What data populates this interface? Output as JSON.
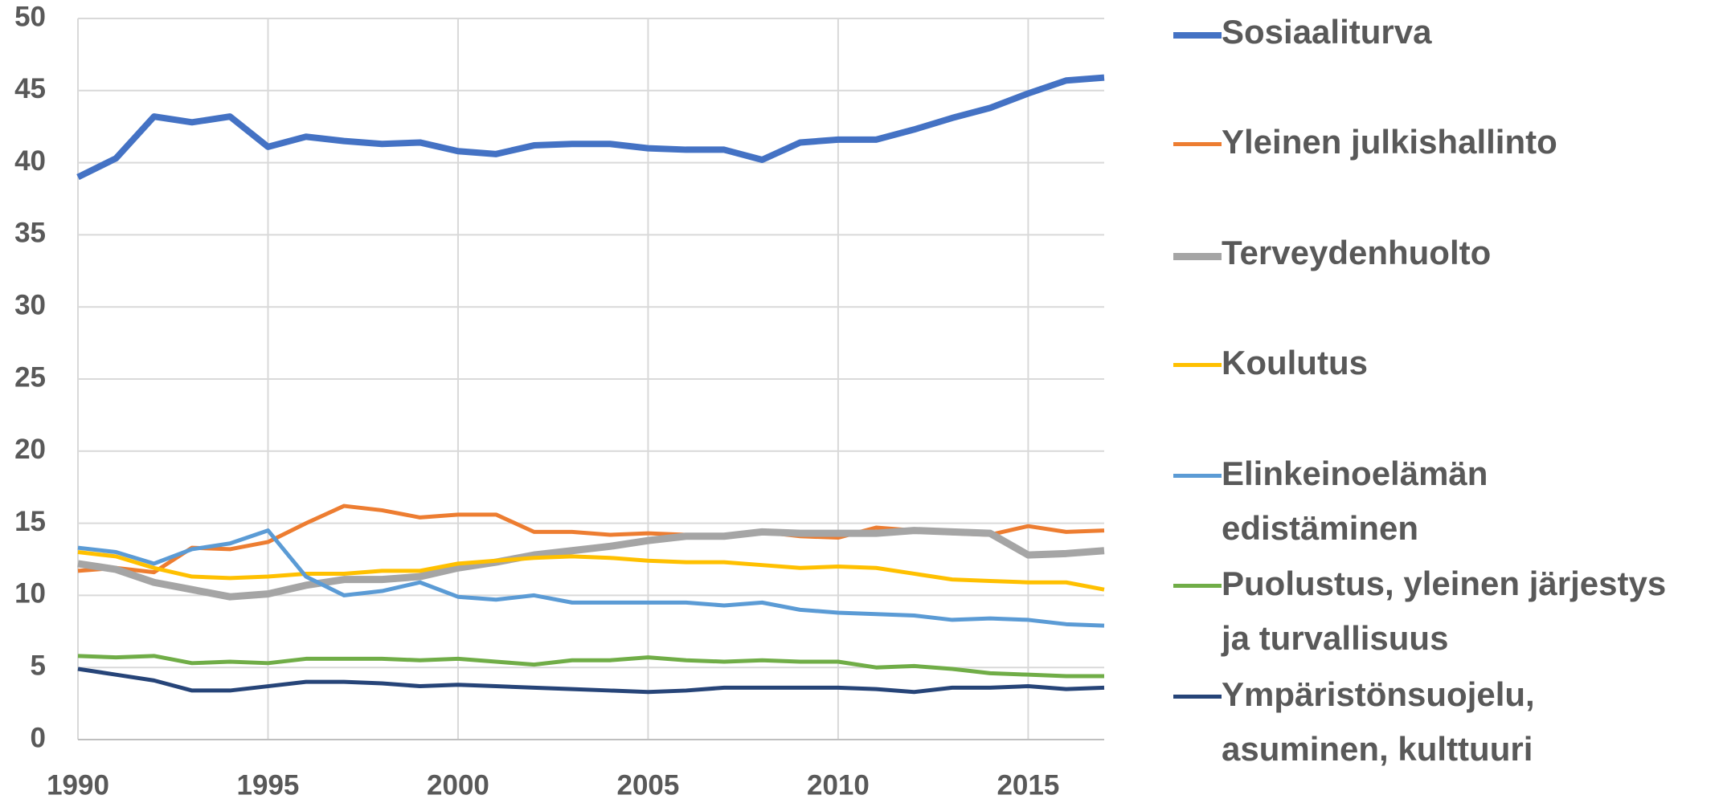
{
  "chart_data": {
    "type": "line",
    "x": [
      1990,
      1991,
      1992,
      1993,
      1994,
      1995,
      1996,
      1997,
      1998,
      1999,
      2000,
      2001,
      2002,
      2003,
      2004,
      2005,
      2006,
      2007,
      2008,
      2009,
      2010,
      2011,
      2012,
      2013,
      2014,
      2015,
      2016,
      2017
    ],
    "xlim": [
      1990,
      2017
    ],
    "xticks": [
      1990,
      1995,
      2000,
      2005,
      2010,
      2015
    ],
    "ylim": [
      0,
      50
    ],
    "yticks": [
      0,
      5,
      10,
      15,
      20,
      25,
      30,
      35,
      40,
      45,
      50
    ],
    "grid": true,
    "legend": "right",
    "series": [
      {
        "name": "Sosiaaliturva",
        "color": "#4472c4",
        "values": [
          39.0,
          40.3,
          43.2,
          42.8,
          43.2,
          41.1,
          41.8,
          41.5,
          41.3,
          41.4,
          40.8,
          40.6,
          41.2,
          41.3,
          41.3,
          41.0,
          40.9,
          40.9,
          40.2,
          41.4,
          41.6,
          41.6,
          42.3,
          43.1,
          43.8,
          44.8,
          45.7,
          45.9
        ]
      },
      {
        "name": "Yleinen julkishallinto",
        "color": "#ed7d31",
        "values": [
          11.7,
          11.9,
          11.6,
          13.3,
          13.2,
          13.7,
          15.0,
          16.2,
          15.9,
          15.4,
          15.6,
          15.6,
          14.4,
          14.4,
          14.2,
          14.3,
          14.2,
          14.1,
          14.4,
          14.1,
          14.0,
          14.7,
          14.5,
          14.3,
          14.2,
          14.8,
          14.4,
          14.5
        ]
      },
      {
        "name": "Terveydenhuolto",
        "color": "#a5a5a5",
        "values": [
          12.2,
          11.8,
          10.9,
          10.4,
          9.9,
          10.1,
          10.7,
          11.1,
          11.1,
          11.3,
          11.9,
          12.3,
          12.8,
          13.1,
          13.4,
          13.8,
          14.1,
          14.1,
          14.4,
          14.3,
          14.3,
          14.3,
          14.5,
          14.4,
          14.3,
          12.8,
          12.9,
          13.1
        ]
      },
      {
        "name": "Koulutus",
        "color": "#ffc000",
        "values": [
          13.0,
          12.7,
          11.9,
          11.3,
          11.2,
          11.3,
          11.5,
          11.5,
          11.7,
          11.7,
          12.2,
          12.4,
          12.6,
          12.7,
          12.6,
          12.4,
          12.3,
          12.3,
          12.1,
          11.9,
          12.0,
          11.9,
          11.5,
          11.1,
          11.0,
          10.9,
          10.9,
          10.4
        ]
      },
      {
        "name": "Elinkeinoelämän edistäminen",
        "color": "#5b9bd5",
        "values": [
          13.3,
          13.0,
          12.2,
          13.2,
          13.6,
          14.5,
          11.3,
          10.0,
          10.3,
          10.9,
          9.9,
          9.7,
          10.0,
          9.5,
          9.5,
          9.5,
          9.5,
          9.3,
          9.5,
          9.0,
          8.8,
          8.7,
          8.6,
          8.3,
          8.4,
          8.3,
          8.0,
          7.9
        ]
      },
      {
        "name": "Puolustus, yleinen järjestys ja turvallisuus",
        "color": "#70ad47",
        "values": [
          5.8,
          5.7,
          5.8,
          5.3,
          5.4,
          5.3,
          5.6,
          5.6,
          5.6,
          5.5,
          5.6,
          5.4,
          5.2,
          5.5,
          5.5,
          5.7,
          5.5,
          5.4,
          5.5,
          5.4,
          5.4,
          5.0,
          5.1,
          4.9,
          4.6,
          4.5,
          4.4,
          4.4
        ]
      },
      {
        "name": "Ympäristönsuojelu, asuminen, kulttuuri",
        "color": "#264478",
        "values": [
          4.9,
          4.5,
          4.1,
          3.4,
          3.4,
          3.7,
          4.0,
          4.0,
          3.9,
          3.7,
          3.8,
          3.7,
          3.6,
          3.5,
          3.4,
          3.3,
          3.4,
          3.6,
          3.6,
          3.6,
          3.6,
          3.5,
          3.3,
          3.6,
          3.6,
          3.7,
          3.5,
          3.6
        ]
      }
    ]
  }
}
